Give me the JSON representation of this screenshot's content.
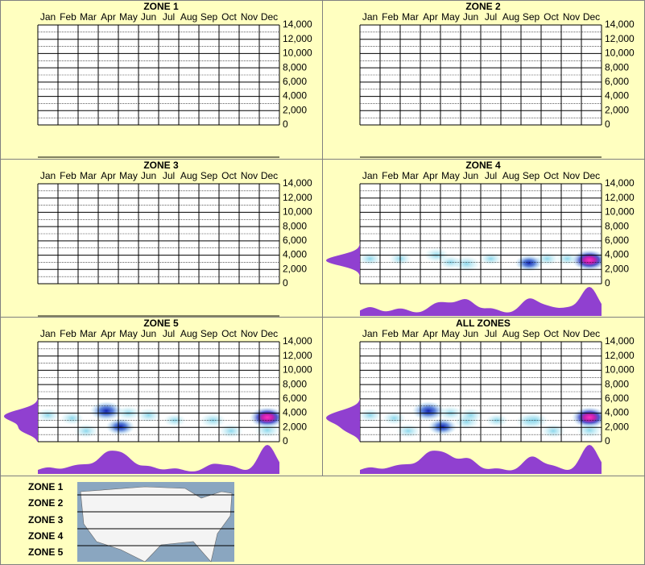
{
  "months": [
    "Jan",
    "Feb",
    "Mar",
    "Apr",
    "May",
    "Jun",
    "Jul",
    "Aug",
    "Sep",
    "Oct",
    "Nov",
    "Dec"
  ],
  "ylim": [
    0,
    14000
  ],
  "yticks": [
    {
      "value": 0,
      "label": "0"
    },
    {
      "value": 2000,
      "label": "2,000"
    },
    {
      "value": 4000,
      "label": "4,000"
    },
    {
      "value": 6000,
      "label": "6,000"
    },
    {
      "value": 8000,
      "label": "8,000"
    },
    {
      "value": 10000,
      "label": "10,000"
    },
    {
      "value": 12000,
      "label": "12,000"
    },
    {
      "value": 14000,
      "label": "14,000"
    }
  ],
  "panels": [
    {
      "title": "ZONE 1",
      "hotspots": []
    },
    {
      "title": "ZONE 2",
      "hotspots": []
    },
    {
      "title": "ZONE 3",
      "hotspots": []
    },
    {
      "title": "ZONE 4",
      "hotspots": [
        {
          "month": 0.5,
          "elevation": 3500,
          "weight": 0.25
        },
        {
          "month": 2,
          "elevation": 3500,
          "weight": 0.2
        },
        {
          "month": 3.8,
          "elevation": 4000,
          "weight": 0.35
        },
        {
          "month": 4.5,
          "elevation": 3000,
          "weight": 0.25
        },
        {
          "month": 5.3,
          "elevation": 2800,
          "weight": 0.5
        },
        {
          "month": 6.5,
          "elevation": 3500,
          "weight": 0.2
        },
        {
          "month": 8.4,
          "elevation": 2900,
          "weight": 0.55
        },
        {
          "month": 9.3,
          "elevation": 3500,
          "weight": 0.25
        },
        {
          "month": 10.3,
          "elevation": 3500,
          "weight": 0.2
        },
        {
          "month": 11.4,
          "elevation": 3300,
          "weight": 1.0
        }
      ]
    },
    {
      "title": "ZONE 5",
      "hotspots": [
        {
          "month": 0.5,
          "elevation": 3700,
          "weight": 0.25
        },
        {
          "month": 1.7,
          "elevation": 3300,
          "weight": 0.25
        },
        {
          "month": 2.4,
          "elevation": 1500,
          "weight": 0.3
        },
        {
          "month": 3.4,
          "elevation": 4300,
          "weight": 0.85
        },
        {
          "month": 4.1,
          "elevation": 2100,
          "weight": 0.6
        },
        {
          "month": 4.5,
          "elevation": 4000,
          "weight": 0.35
        },
        {
          "month": 5.5,
          "elevation": 3700,
          "weight": 0.3
        },
        {
          "month": 6.8,
          "elevation": 3000,
          "weight": 0.2
        },
        {
          "month": 8.7,
          "elevation": 3000,
          "weight": 0.4
        },
        {
          "month": 9.6,
          "elevation": 1500,
          "weight": 0.3
        },
        {
          "month": 11.4,
          "elevation": 3400,
          "weight": 1.0
        },
        {
          "month": 11.4,
          "elevation": 1600,
          "weight": 0.4
        }
      ]
    },
    {
      "title": "ALL ZONES",
      "hotspots": [
        {
          "month": 0.5,
          "elevation": 3700,
          "weight": 0.25
        },
        {
          "month": 1.7,
          "elevation": 3300,
          "weight": 0.25
        },
        {
          "month": 2.4,
          "elevation": 1500,
          "weight": 0.3
        },
        {
          "month": 3.4,
          "elevation": 4300,
          "weight": 0.85
        },
        {
          "month": 4.1,
          "elevation": 2100,
          "weight": 0.6
        },
        {
          "month": 4.5,
          "elevation": 4000,
          "weight": 0.35
        },
        {
          "month": 5.3,
          "elevation": 2800,
          "weight": 0.4
        },
        {
          "month": 5.5,
          "elevation": 3700,
          "weight": 0.3
        },
        {
          "month": 6.8,
          "elevation": 3000,
          "weight": 0.2
        },
        {
          "month": 8.4,
          "elevation": 2900,
          "weight": 0.45
        },
        {
          "month": 8.7,
          "elevation": 3000,
          "weight": 0.4
        },
        {
          "month": 9.6,
          "elevation": 1500,
          "weight": 0.3
        },
        {
          "month": 11.4,
          "elevation": 3400,
          "weight": 1.0
        },
        {
          "month": 11.4,
          "elevation": 1600,
          "weight": 0.4
        }
      ]
    }
  ],
  "map_zones": [
    "ZONE 1",
    "ZONE 2",
    "ZONE 3",
    "ZONE 4",
    "ZONE 5"
  ]
}
